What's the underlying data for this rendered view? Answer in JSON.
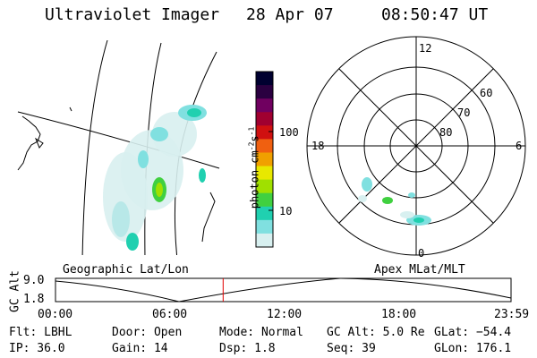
{
  "header": {
    "title": "Ultraviolet Imager",
    "date": "28 Apr 07",
    "time": "08:50:47 UT"
  },
  "colorbar": {
    "unit_label_parts": [
      "photon cm",
      "-2",
      "s",
      "-1"
    ],
    "tick_labels": [
      "100",
      "10"
    ],
    "colors": [
      "#000030",
      "#2a0040",
      "#700060",
      "#a00030",
      "#d01010",
      "#f06010",
      "#f0a000",
      "#e8e800",
      "#a0e000",
      "#40d040",
      "#20d0b0",
      "#80e0e0",
      "#d8f0f0"
    ]
  },
  "left_panel": {
    "caption": "Geographic Lat/Lon"
  },
  "polar_panel": {
    "caption": "Apex MLat/MLT",
    "mlt_labels": {
      "top": "12",
      "left": "18",
      "right": "6",
      "bottom": "0"
    },
    "lat_labels": [
      "60",
      "70",
      "80"
    ]
  },
  "altitude_strip": {
    "ylabel": "GC Alt",
    "y_ticks": [
      "9.0",
      "1.8"
    ],
    "x_ticks": [
      "00:00",
      "06:00",
      "12:00",
      "18:00",
      "23:59"
    ],
    "current_time_fraction": 0.368
  },
  "info": {
    "flt": "Flt: LBHL",
    "ip": "IP: 36.0",
    "door": "Door: Open",
    "gain": "Gain: 14",
    "mode": "Mode: Normal",
    "dsp": "Dsp:    1.8",
    "gcalt": "GC Alt: 5.0 Re",
    "seq": "Seq: 39",
    "glat": "GLat: −54.4",
    "glon": "GLon: 176.1"
  }
}
